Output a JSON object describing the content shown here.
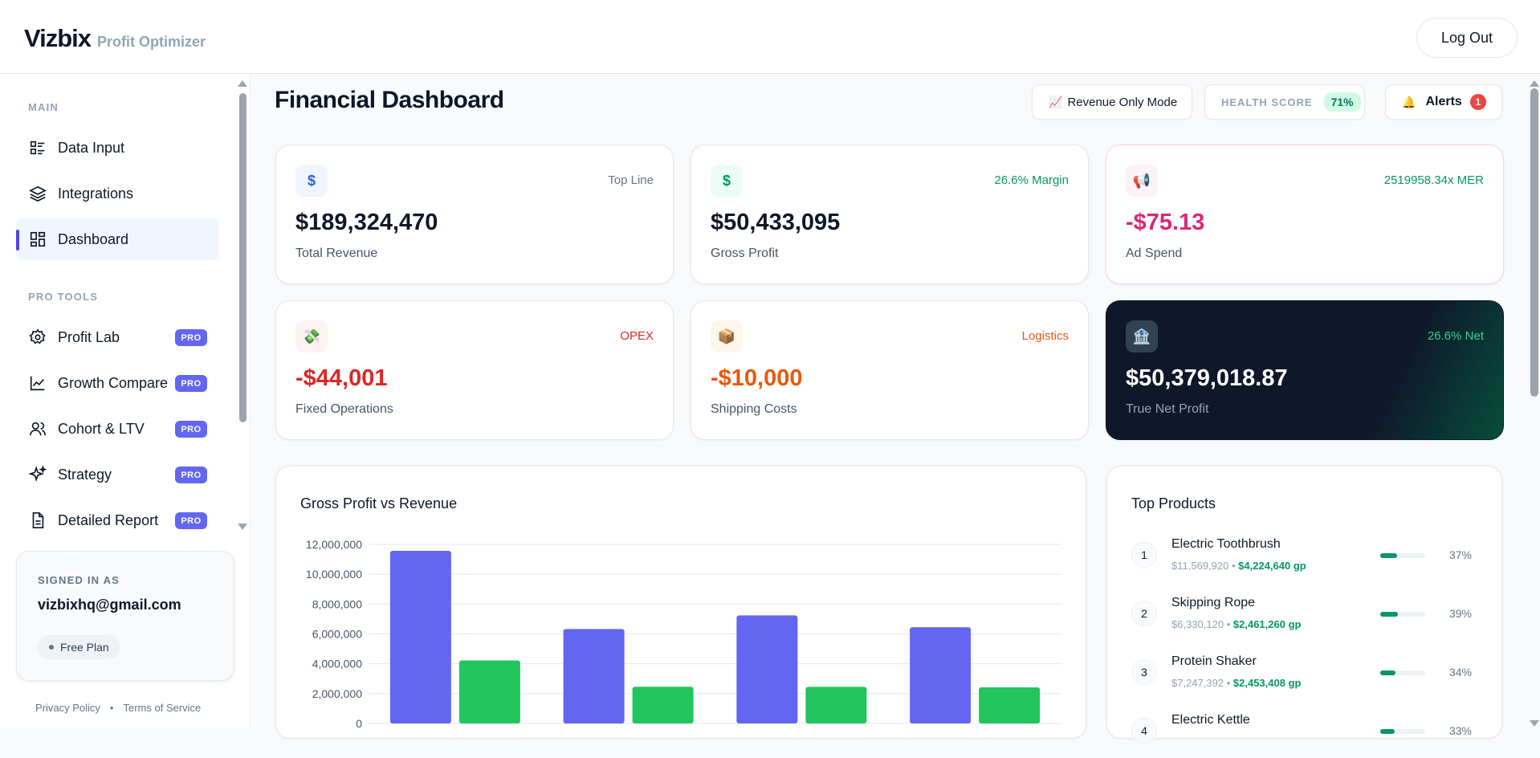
{
  "header": {
    "brand": "Vizbix",
    "brand_sub": "Profit Optimizer",
    "logout_label": "Log Out"
  },
  "sidebar": {
    "main_section": "MAIN",
    "main_items": [
      {
        "label": "Data Input",
        "icon": "list-icon"
      },
      {
        "label": "Integrations",
        "icon": "layers-icon"
      },
      {
        "label": "Dashboard",
        "icon": "grid-icon",
        "active": true
      }
    ],
    "pro_section": "PRO TOOLS",
    "pro_badge": "PRO",
    "pro_items": [
      {
        "label": "Profit Lab",
        "icon": "gear-icon"
      },
      {
        "label": "Growth Compare",
        "icon": "line-chart-icon"
      },
      {
        "label": "Cohort & LTV",
        "icon": "users-icon"
      },
      {
        "label": "Strategy",
        "icon": "sparkles-icon"
      },
      {
        "label": "Detailed Report",
        "icon": "document-icon"
      }
    ],
    "user": {
      "label": "SIGNED IN AS",
      "email": "vizbixhq@gmail.com",
      "plan": "Free Plan"
    },
    "footer": {
      "privacy": "Privacy Policy",
      "sep": "•",
      "terms": "Terms of Service"
    }
  },
  "main": {
    "title": "Financial Dashboard",
    "revenue_mode": {
      "icon": "📈",
      "label": "Revenue Only Mode"
    },
    "health": {
      "label": "HEALTH SCORE",
      "value": "71%"
    },
    "alerts": {
      "icon": "🔔",
      "label": "Alerts",
      "count": "1"
    },
    "kpis": [
      {
        "icon": "$",
        "tag": "Top Line",
        "value": "$189,324,470",
        "label": "Total Revenue",
        "tag_color": "#64748b",
        "value_color": "#0f172a",
        "icon_bg": "#eff6ff",
        "icon_color": "#2563eb"
      },
      {
        "icon": "$",
        "tag": "26.6% Margin",
        "value": "$50,433,095",
        "label": "Gross Profit",
        "tag_color": "#059669",
        "value_color": "#0f172a",
        "icon_bg": "#ecfdf5",
        "icon_color": "#059669"
      },
      {
        "icon": "📢",
        "tag": "2519958.34x MER",
        "value": "-$75.13",
        "label": "Ad Spend",
        "tag_color": "#059669",
        "value_color": "#db2777",
        "icon_bg": "#fdf2f8",
        "icon_color": "#db2777"
      },
      {
        "icon": "💸",
        "tag": "OPEX",
        "value": "-$44,001",
        "label": "Fixed Operations",
        "tag_color": "#dc2626",
        "value_color": "#dc2626",
        "icon_bg": "#fef2f2",
        "icon_color": "#dc2626"
      },
      {
        "icon": "📦",
        "tag": "Logistics",
        "value": "-$10,000",
        "label": "Shipping Costs",
        "tag_color": "#ea580c",
        "value_color": "#ea580c",
        "icon_bg": "#fff7ed",
        "icon_color": "#ea580c"
      },
      {
        "icon": "🏦",
        "tag": "26.6% Net",
        "value": "$50,379,018.87",
        "label": "True Net Profit",
        "tag_color": "#34d399",
        "value_color": "#ffffff",
        "icon_bg": "#334155",
        "icon_color": "#e2e8f0"
      }
    ],
    "chart_title": "Gross Profit vs Revenue",
    "top_products": {
      "title": "Top Products",
      "items": [
        {
          "rank": "1",
          "name": "Electric Toothbrush",
          "revenue": "$11,569,920",
          "sep": "•",
          "gp": "$4,224,640 gp",
          "pct_label": "37%",
          "pct": 37
        },
        {
          "rank": "2",
          "name": "Skipping Rope",
          "revenue": "$6,330,120",
          "sep": "•",
          "gp": "$2,461,260 gp",
          "pct_label": "39%",
          "pct": 39
        },
        {
          "rank": "3",
          "name": "Protein Shaker",
          "revenue": "$7,247,392",
          "sep": "•",
          "gp": "$2,453,408 gp",
          "pct_label": "34%",
          "pct": 34
        },
        {
          "rank": "4",
          "name": "Electric Kettle",
          "revenue": "",
          "sep": "",
          "gp": "",
          "pct_label": "33%",
          "pct": 33
        }
      ]
    }
  },
  "chart_data": {
    "type": "bar",
    "title": "Gross Profit vs Revenue",
    "categories": [
      "",
      "",
      "",
      ""
    ],
    "series": [
      {
        "values": [
          11569920,
          6330120,
          7247392,
          6450000
        ],
        "color": "#6366f1"
      },
      {
        "values": [
          4224640,
          2461260,
          2453408,
          2420000
        ],
        "color": "#22c55e"
      }
    ],
    "yticks": [
      "0",
      "2,000,000",
      "4,000,000",
      "6,000,000",
      "8,000,000",
      "10,000,000",
      "12,000,000"
    ],
    "ylim": [
      0,
      12000000
    ],
    "grid": true
  }
}
